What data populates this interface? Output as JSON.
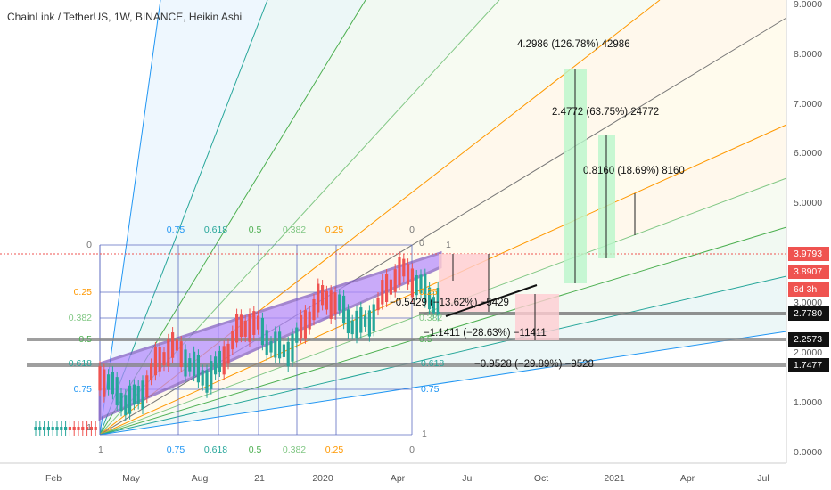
{
  "header": {
    "title": "ChainLink / TetherUS, 1W, BINANCE, Heikin Ashi"
  },
  "price_axis": {
    "labels": [
      "9.0000",
      "8.0000",
      "7.0000",
      "6.0000",
      "5.0000",
      "3.0000",
      "2.0000",
      "1.0000",
      "0.0000"
    ],
    "badges": [
      "3.9793",
      "3.8907",
      "6d 3h",
      "2.7780",
      "2.2573",
      "1.7477"
    ]
  },
  "time_axis": {
    "labels": [
      "Feb",
      "May",
      "Aug",
      "21",
      "2020",
      "Apr",
      "Jul",
      "Oct",
      "2021",
      "Apr",
      "Jul"
    ]
  },
  "fib": {
    "top": [
      "0.75",
      "0.618",
      "0.5",
      "0.382",
      "0.25",
      "0"
    ],
    "bottom": [
      "0.75",
      "0.618",
      "0.5",
      "0.382",
      "0.25",
      "0"
    ],
    "left": [
      "0",
      "0.25",
      "0.382",
      "0.5",
      "0.618",
      "0.75",
      "1"
    ],
    "corner": [
      "1",
      "1",
      "0",
      "0.25",
      "0.382",
      "0.5",
      "0.618",
      "0.75",
      "1"
    ]
  },
  "measurements": [
    "4.2986 (126.78%) 42986",
    "2.4772 (63.75%) 24772",
    "0.8160 (18.69%) 8160",
    "−0.5429 (−13.62%) −5429",
    "−1.1411 (−28.63%) −11411",
    "−0.9528 (−29.89%) −9528"
  ]
}
